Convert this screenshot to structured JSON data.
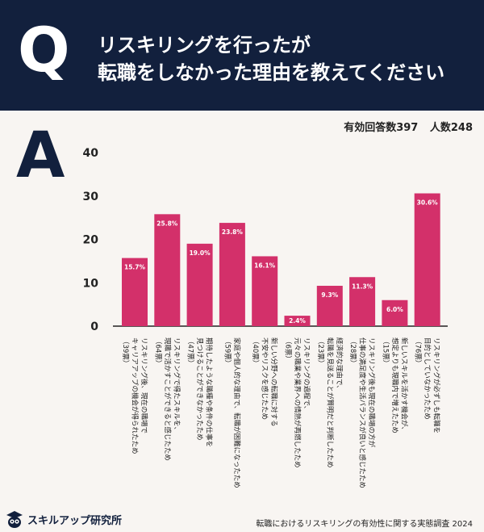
{
  "header": {
    "q_letter": "Q",
    "title_line1": "リスキリングを行ったが",
    "title_line2": "転職をしなかった理由を教えてください"
  },
  "answer_letter": "A",
  "counts": {
    "valid": "有効回答数397",
    "people": "人数248"
  },
  "colors": {
    "bar": "#d3306a",
    "header": "#12203d",
    "background": "#f8f5f2"
  },
  "chart_data": {
    "type": "bar",
    "ylim": [
      0,
      40
    ],
    "yticks": [
      "0",
      "10",
      "20",
      "30",
      "40"
    ],
    "grid": false,
    "categories": [
      [
        "リスキリング後、現在の職場で",
        "キャリアアップの機会が得られたため",
        "（39票）"
      ],
      [
        "リスキリングで得たスキルを、",
        "現職で活かすことができると感じたため",
        "（64票）"
      ],
      [
        "期待したような職種や条件の仕事を",
        "見つけることができなかったため",
        "（47票）"
      ],
      [
        "家庭や個人的な理由で、転職が困難になったため",
        "（59票）"
      ],
      [
        "新しい分野への転職に対する",
        "不安やリスクを感じたため",
        "（40票）"
      ],
      [
        "リスキリングの過程で、",
        "元々の職業や業界への情熱が再燃したため",
        "（6票）"
      ],
      [
        "経済的な理由で、",
        "転職を見送ることが賢明だと判断したため",
        "（23票）"
      ],
      [
        "リスキリング後も現在の職場の方が",
        "仕事の満足度や生活バランスが良いと感じたため",
        "（28票）"
      ],
      [
        "新しいスキルを活かす機会が、",
        "想定よりも現職内で増えたため",
        "（15票）"
      ],
      [
        "リスキリングが必ずしも転職を",
        "目的としていなかったため",
        "（76票）"
      ]
    ],
    "values": [
      15.7,
      25.8,
      19.0,
      23.8,
      16.1,
      2.4,
      9.3,
      11.3,
      6.0,
      30.6
    ],
    "value_labels": [
      "15.7%",
      "25.8%",
      "19.0%",
      "23.8%",
      "16.1%",
      "2.4%",
      "9.3%",
      "11.3%",
      "6.0%",
      "30.6%"
    ]
  },
  "footer": {
    "brand": "スキルアップ研究所",
    "source": "転職におけるリスキリングの有効性に関する実態調査 2024"
  }
}
